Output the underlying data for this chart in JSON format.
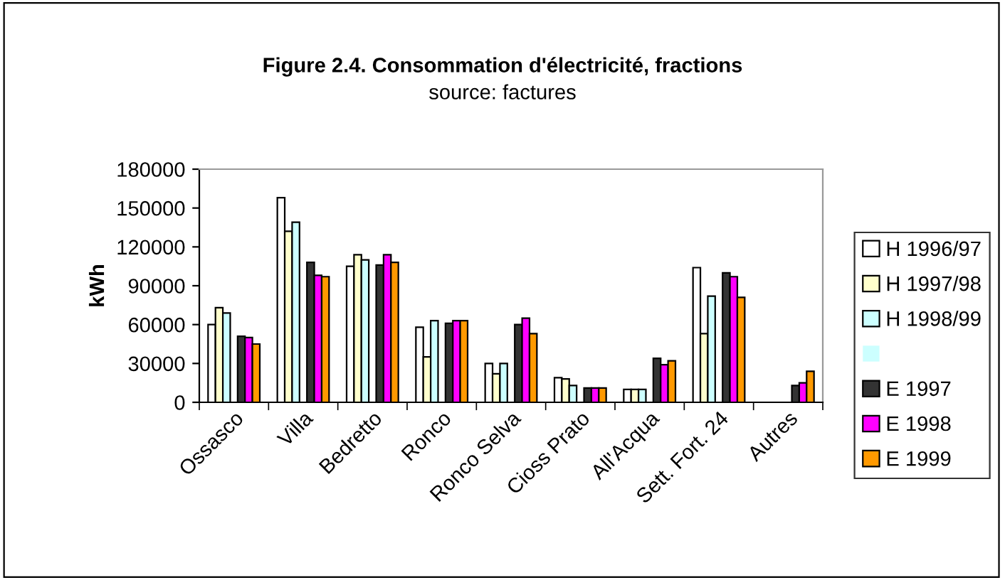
{
  "chart_data": {
    "type": "bar",
    "title": "Figure 2.4. Consommation d'électricité, fractions",
    "subtitle": "source: factures",
    "ylabel": "kWh",
    "categories": [
      "Ossasco",
      "Villa",
      "Bedretto",
      "Ronco",
      "Ronco Selva",
      "Cioss Prato",
      "All'Acqua",
      "Sett. Fort. 24",
      "Autres"
    ],
    "series": [
      {
        "name": "H 1996/97",
        "color": "#ffffff",
        "values": [
          60000,
          158000,
          105000,
          58000,
          30000,
          19000,
          10000,
          104000,
          null
        ]
      },
      {
        "name": "H 1997/98",
        "color": "#ffffcc",
        "values": [
          73000,
          132000,
          114000,
          35000,
          22000,
          18000,
          10000,
          53000,
          null
        ]
      },
      {
        "name": "H 1998/99",
        "color": "#ccffff",
        "values": [
          69000,
          139000,
          110000,
          63000,
          30000,
          13000,
          10000,
          82000,
          null
        ]
      },
      {
        "color": "#ccffff",
        "values": [
          null,
          null,
          null,
          null,
          null,
          null,
          null,
          null,
          null
        ]
      },
      {
        "name": "E 1997",
        "color": "#333333",
        "values": [
          51000,
          108000,
          106000,
          61000,
          60000,
          11000,
          34000,
          100000,
          13000
        ]
      },
      {
        "name": "E 1998",
        "color": "#ff00ff",
        "values": [
          50000,
          98000,
          114000,
          63000,
          65000,
          11000,
          29000,
          97000,
          15000
        ]
      },
      {
        "name": "E 1999",
        "color": "#ff9900",
        "values": [
          45000,
          97000,
          108000,
          63000,
          53000,
          11000,
          32000,
          81000,
          24000
        ]
      }
    ],
    "ylim": [
      0,
      180000
    ],
    "yticks": [
      0,
      30000,
      60000,
      90000,
      120000,
      150000,
      180000
    ],
    "grid": false,
    "legend": "right"
  }
}
